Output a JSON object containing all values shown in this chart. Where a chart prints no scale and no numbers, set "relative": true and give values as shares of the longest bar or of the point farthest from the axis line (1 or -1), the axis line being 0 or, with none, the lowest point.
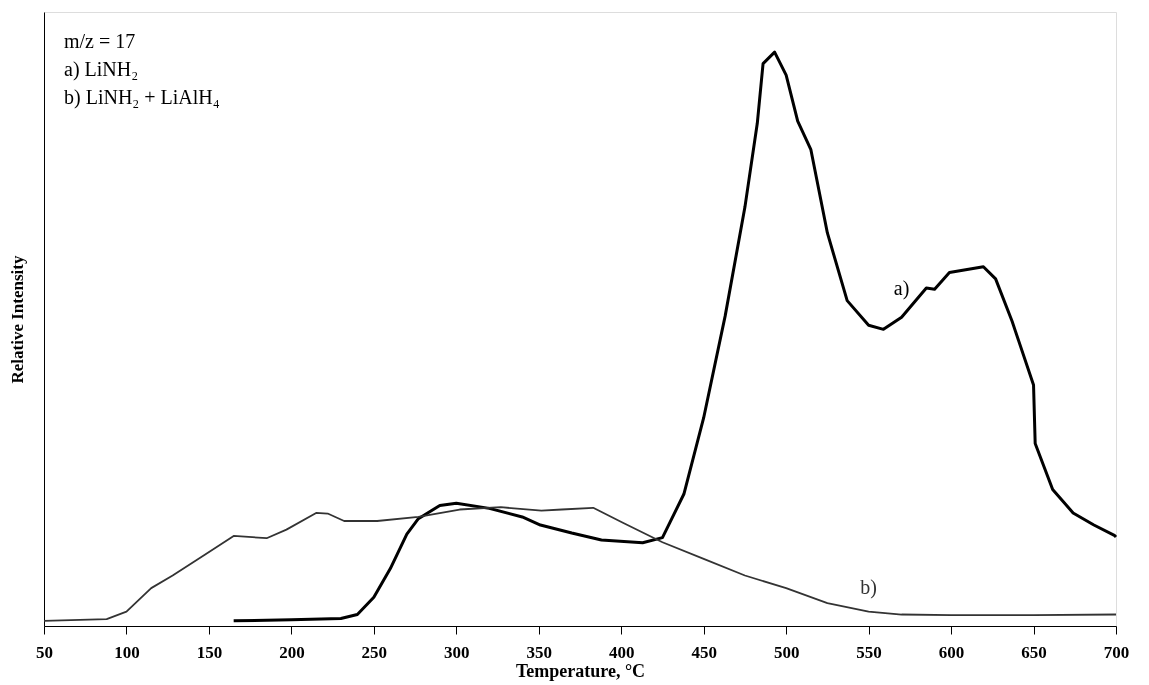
{
  "chart_data": {
    "type": "line",
    "relative": true,
    "xlabel": "Temperature, °C",
    "ylabel": "Relative Intensity",
    "xlim": [
      50,
      700
    ],
    "xticks": [
      50,
      100,
      150,
      200,
      250,
      300,
      350,
      400,
      450,
      500,
      550,
      600,
      650,
      700
    ],
    "grid": false,
    "line_style": "solid",
    "marker": "none",
    "series": [
      {
        "name": "a)",
        "color": "#000000",
        "x": [
          165,
          200,
          230,
          240,
          250,
          260,
          270,
          277,
          290,
          300,
          320,
          340,
          351,
          370,
          388,
          413,
          425,
          438,
          450,
          463,
          475,
          482.5,
          486,
          493,
          500,
          507,
          515,
          525,
          537,
          550,
          559,
          570,
          585,
          590,
          599,
          619.6,
          627,
          637,
          650,
          651,
          661.6,
          674,
          686.6,
          699,
          700
        ],
        "values": [
          0.009,
          0.011,
          0.013,
          0.02,
          0.05,
          0.1,
          0.16,
          0.187,
          0.21,
          0.214,
          0.205,
          0.19,
          0.176,
          0.162,
          0.15,
          0.145,
          0.154,
          0.23,
          0.363,
          0.54,
          0.73,
          0.876,
          0.98,
          1.0,
          0.96,
          0.88,
          0.83,
          0.685,
          0.567,
          0.524,
          0.517,
          0.538,
          0.589,
          0.587,
          0.616,
          0.626,
          0.605,
          0.531,
          0.42,
          0.318,
          0.238,
          0.197,
          0.176,
          0.158,
          0.155
        ]
      },
      {
        "name": "b)",
        "color": "#333333",
        "x": [
          50,
          88,
          100,
          115,
          128,
          147.5,
          165,
          185,
          197,
          215,
          222,
          232,
          252,
          277,
          302,
          327,
          351.6,
          364,
          383,
          401,
          425,
          450,
          475,
          500,
          525,
          550,
          570,
          600,
          650,
          700
        ],
        "values": [
          0.009,
          0.012,
          0.025,
          0.066,
          0.088,
          0.124,
          0.157,
          0.153,
          0.168,
          0.197,
          0.196,
          0.183,
          0.183,
          0.19,
          0.203,
          0.207,
          0.201,
          0.203,
          0.206,
          0.18,
          0.146,
          0.117,
          0.088,
          0.066,
          0.04,
          0.025,
          0.02,
          0.019,
          0.019,
          0.02
        ]
      }
    ],
    "annotations": [
      "m/z = 17",
      "a) LiNH₂",
      "b) LiNH₂ + LiAlH₄"
    ]
  }
}
